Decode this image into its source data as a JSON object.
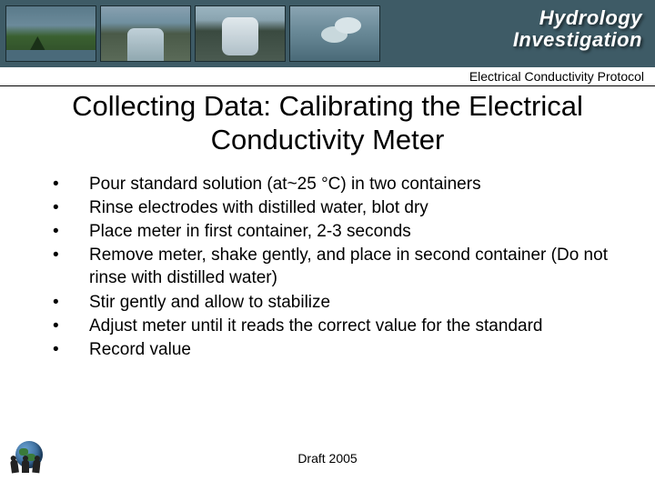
{
  "banner": {
    "title_line1": "Hydrology",
    "title_line2": "Investigation",
    "background_color": "#3e5b66",
    "title_color": "#ffffff"
  },
  "sub_bar": {
    "text": "Electrical Conductivity Protocol",
    "border_color": "#000000"
  },
  "slide": {
    "title": "Collecting Data: Calibrating the Electrical Conductivity Meter",
    "title_fontsize": 31,
    "body_fontsize": 19,
    "bullets": [
      "Pour standard solution (at~25 °C) in two containers",
      "Rinse electrodes with distilled water, blot dry",
      "Place meter in first container, 2-3 seconds",
      "Remove meter, shake gently, and place in second container (Do not rinse with distilled water)",
      "Stir gently and allow to stabilize",
      "Adjust meter until it reads the correct value for the standard",
      "Record value"
    ]
  },
  "footer": {
    "label": "Draft 2005"
  },
  "colors": {
    "page_background": "#ffffff",
    "text": "#000000"
  }
}
